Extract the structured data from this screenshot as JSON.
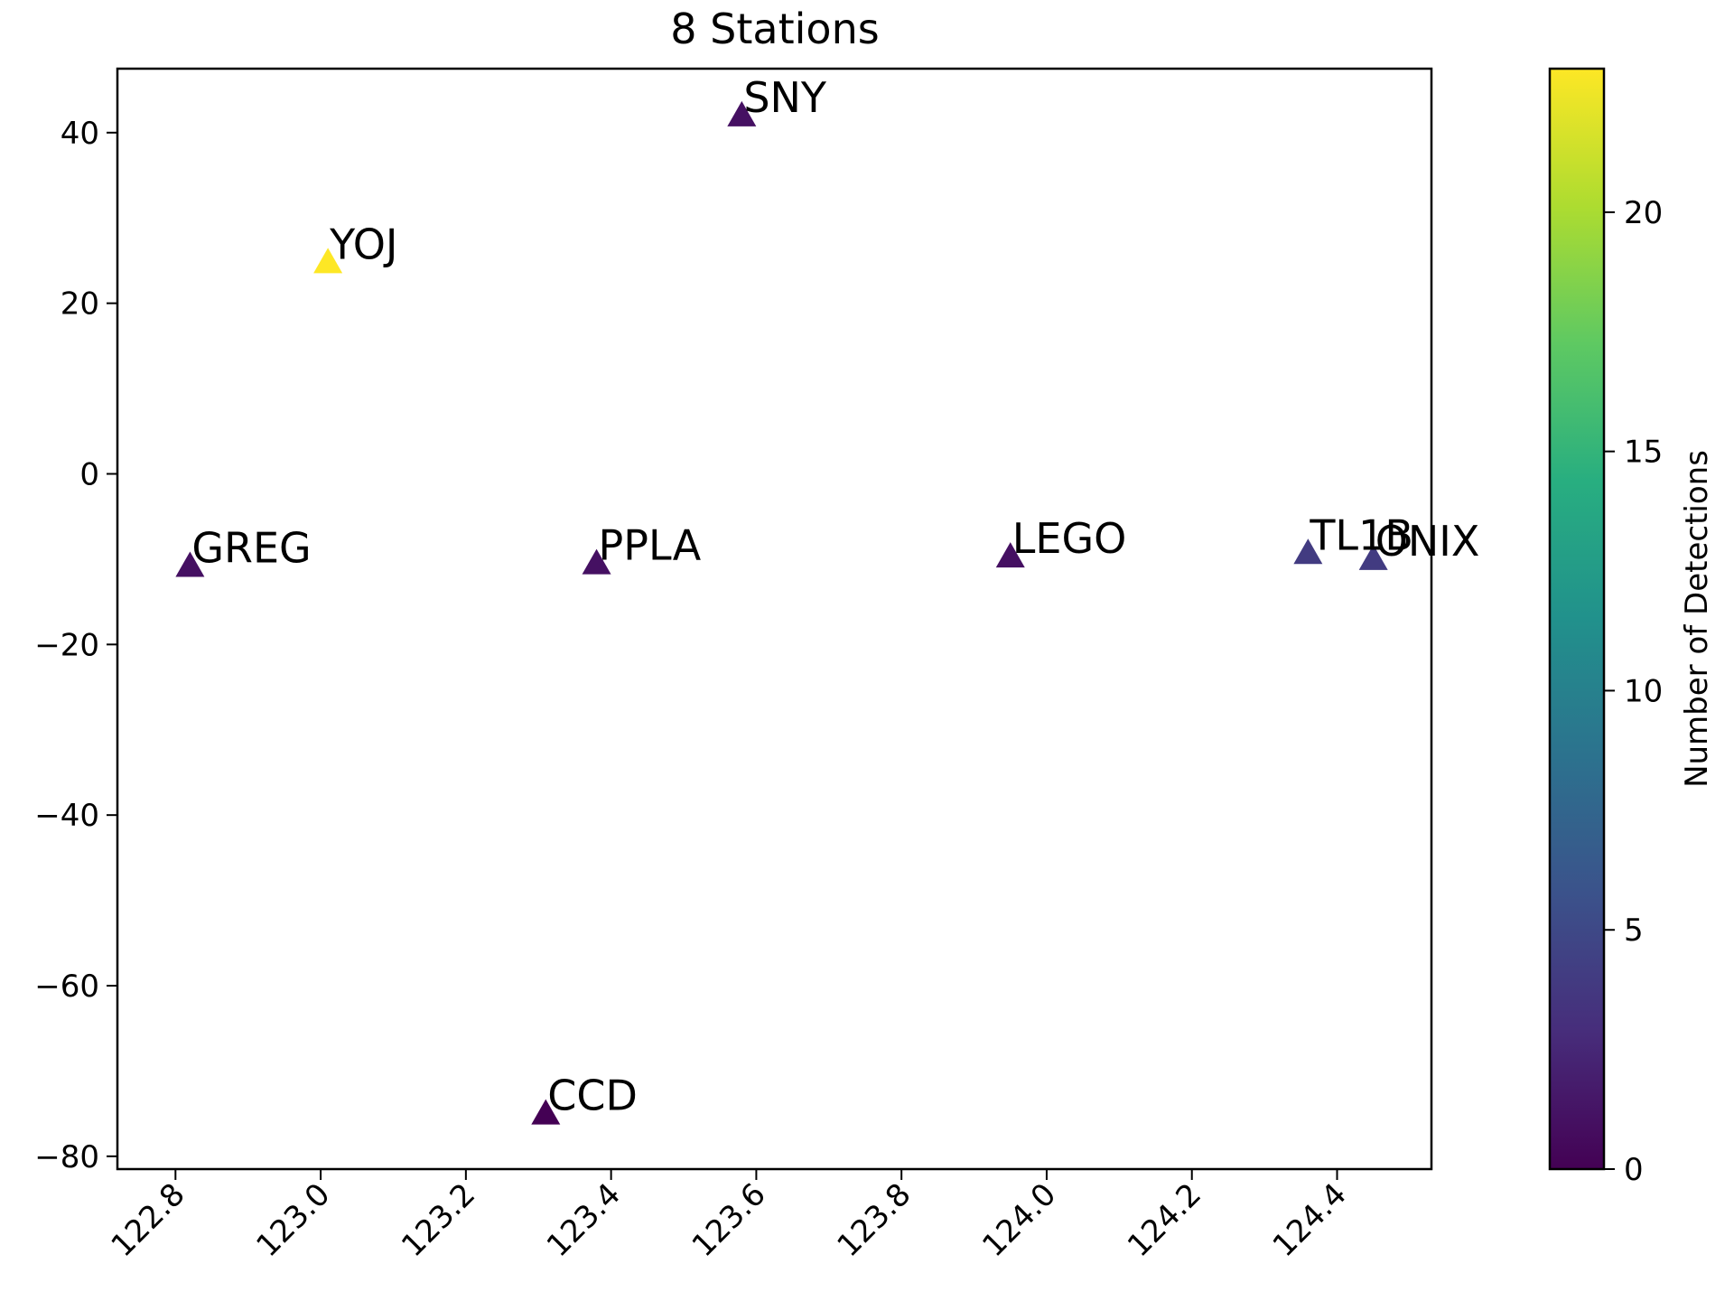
{
  "chart_data": {
    "type": "scatter",
    "title": "8 Stations",
    "xlabel": "",
    "ylabel": "",
    "xlim": [
      122.72,
      124.53
    ],
    "ylim": [
      -81.5,
      47.5
    ],
    "xticks": [
      122.8,
      123.0,
      123.2,
      123.4,
      123.6,
      123.8,
      124.0,
      124.2,
      124.4
    ],
    "xtick_labels": [
      "122.8",
      "123.0",
      "123.2",
      "123.4",
      "123.6",
      "123.8",
      "124.0",
      "124.2",
      "124.4"
    ],
    "yticks": [
      40,
      20,
      0,
      -20,
      -40,
      -60,
      -80
    ],
    "ytick_labels": [
      "40",
      "20",
      "0",
      "−20",
      "−40",
      "−60",
      "−80"
    ],
    "marker": "triangle",
    "grid": false,
    "points": [
      {
        "label": "GREG",
        "x": 122.82,
        "y": -10.8,
        "detections": 1
      },
      {
        "label": "YOJ",
        "x": 123.01,
        "y": 24.8,
        "detections": 23
      },
      {
        "label": "SNY",
        "x": 123.58,
        "y": 42.0,
        "detections": 1
      },
      {
        "label": "PPLA",
        "x": 123.38,
        "y": -10.5,
        "detections": 1
      },
      {
        "label": "CCD",
        "x": 123.31,
        "y": -75.0,
        "detections": 0
      },
      {
        "label": "LEGO",
        "x": 123.95,
        "y": -9.7,
        "detections": 1
      },
      {
        "label": "TL1B",
        "x": 124.36,
        "y": -9.3,
        "detections": 4
      },
      {
        "label": "ONIX",
        "x": 124.45,
        "y": -10.0,
        "detections": 4
      }
    ],
    "colorbar": {
      "label": "Number of Detections",
      "colormap": "viridis",
      "range": [
        0,
        23
      ],
      "ticks": [
        0,
        5,
        10,
        15,
        20
      ],
      "tick_labels": [
        "0",
        "5",
        "10",
        "15",
        "20"
      ]
    }
  }
}
